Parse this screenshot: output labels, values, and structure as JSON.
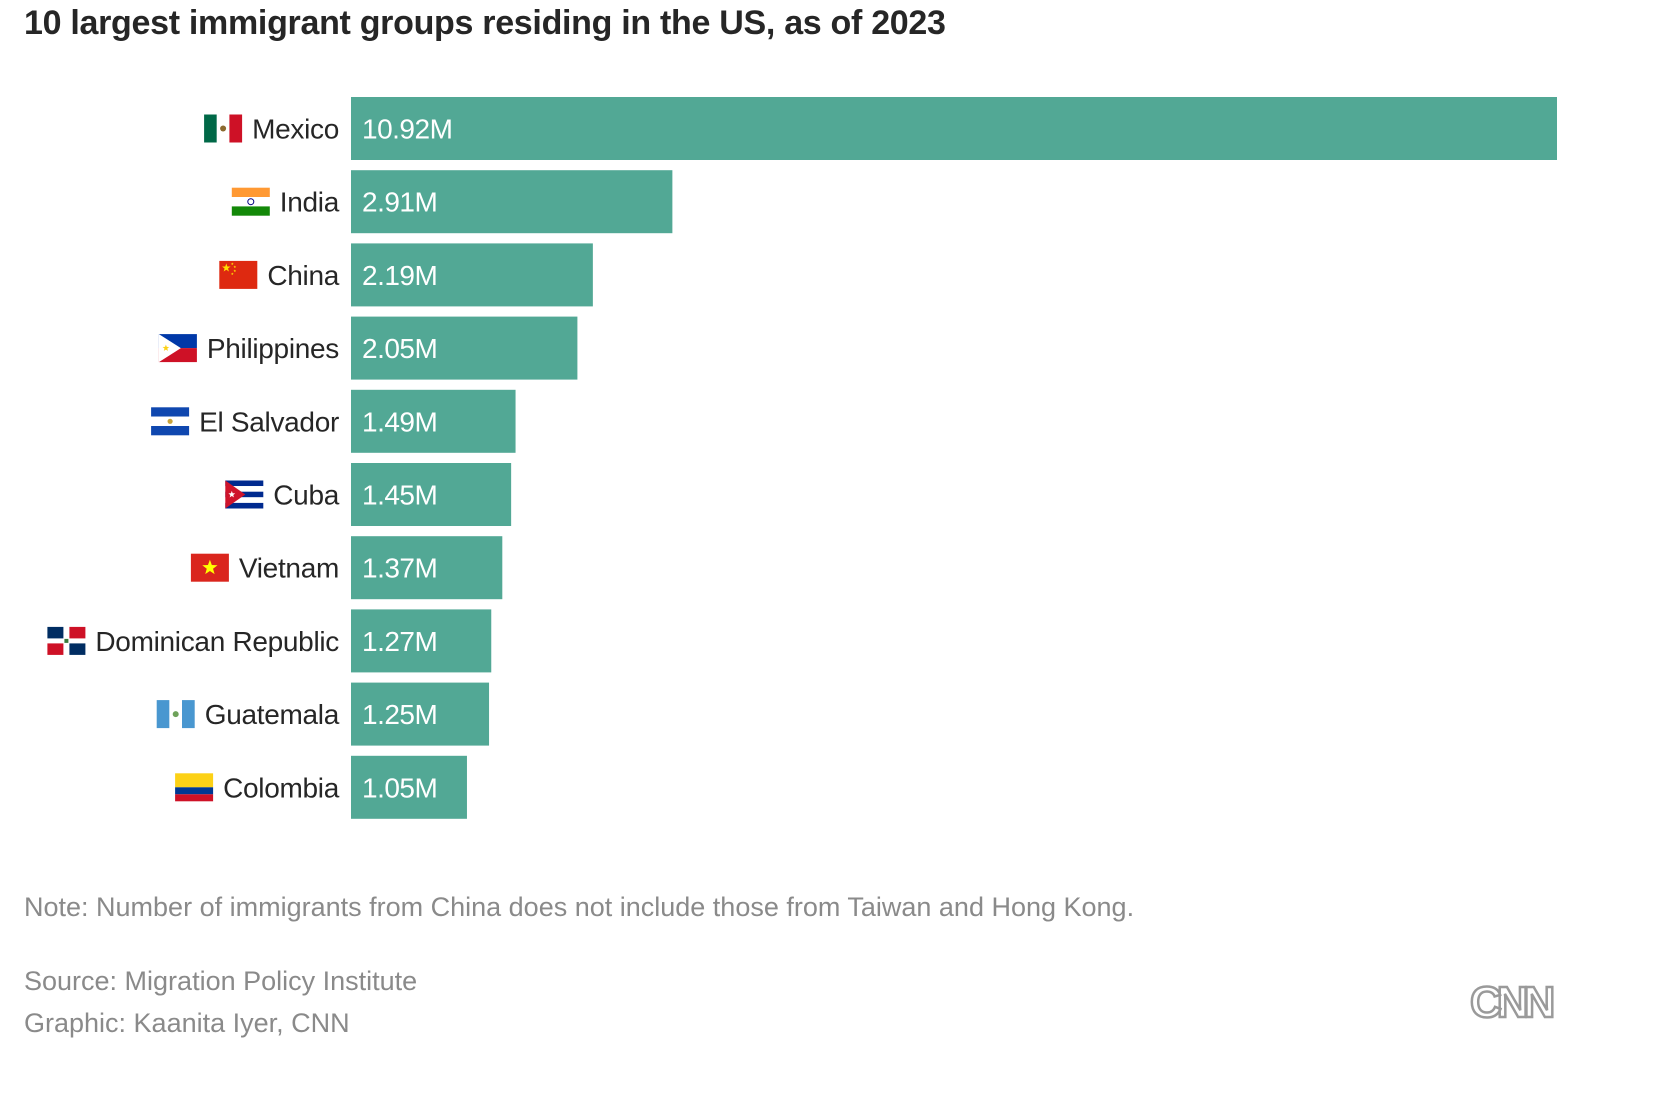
{
  "title": "10 largest immigrant groups residing in the US, as of 2023",
  "note": "Note: Number of immigrants from China does not include those from Taiwan and Hong Kong.",
  "source": "Source: Migration Policy Institute",
  "credit": "Graphic: Kaanita Iyer, CNN",
  "logo_text": "CNN",
  "colors": {
    "bar": "#52a895",
    "bar_label": "#ffffff",
    "category_label": "#262626",
    "footer_text": "#8a8a8a"
  },
  "chart_data": {
    "type": "bar",
    "orientation": "horizontal",
    "title": "10 largest immigrant groups residing in the US, as of 2023",
    "categories": [
      "Mexico",
      "India",
      "China",
      "Philippines",
      "El Salvador",
      "Cuba",
      "Vietnam",
      "Dominican Republic",
      "Guatemala",
      "Colombia"
    ],
    "values": [
      10.92,
      2.91,
      2.19,
      2.05,
      1.49,
      1.45,
      1.37,
      1.27,
      1.25,
      1.05
    ],
    "value_labels": [
      "10.92M",
      "2.91M",
      "2.19M",
      "2.05M",
      "1.49M",
      "1.45M",
      "1.37M",
      "1.27M",
      "1.25M",
      "1.05M"
    ],
    "unit": "M",
    "flag_icons": [
      "mexico-flag-icon",
      "india-flag-icon",
      "china-flag-icon",
      "philippines-flag-icon",
      "el-salvador-flag-icon",
      "cuba-flag-icon",
      "vietnam-flag-icon",
      "dominican-republic-flag-icon",
      "guatemala-flag-icon",
      "colombia-flag-icon"
    ],
    "xlim": [
      0,
      10.92
    ],
    "grid": false,
    "legend": "none"
  }
}
